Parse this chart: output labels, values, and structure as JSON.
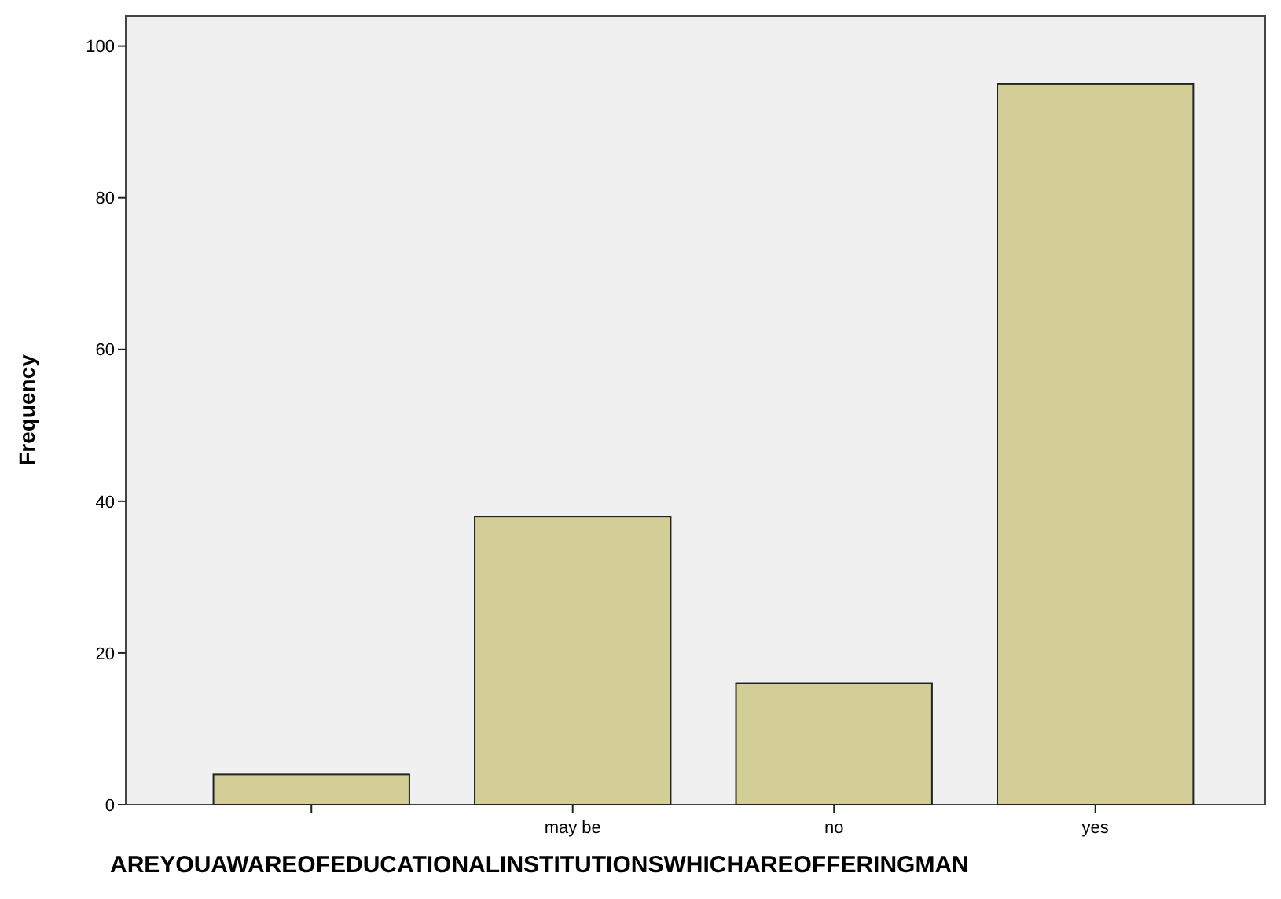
{
  "chart_data": {
    "type": "bar",
    "xlabel": "AREYOUAWAREOFEDUCATIONALINSTITUTIONSWHICHAREOFFERINGMAN",
    "ylabel": "Frequency",
    "categories": [
      null,
      "may be",
      "no",
      "yes"
    ],
    "values": [
      4,
      38,
      16,
      95
    ],
    "color": "#d3ce97",
    "ylim": [
      0,
      104
    ],
    "yticks": [
      0,
      20,
      40,
      60,
      80,
      100
    ],
    "grid": false
  }
}
